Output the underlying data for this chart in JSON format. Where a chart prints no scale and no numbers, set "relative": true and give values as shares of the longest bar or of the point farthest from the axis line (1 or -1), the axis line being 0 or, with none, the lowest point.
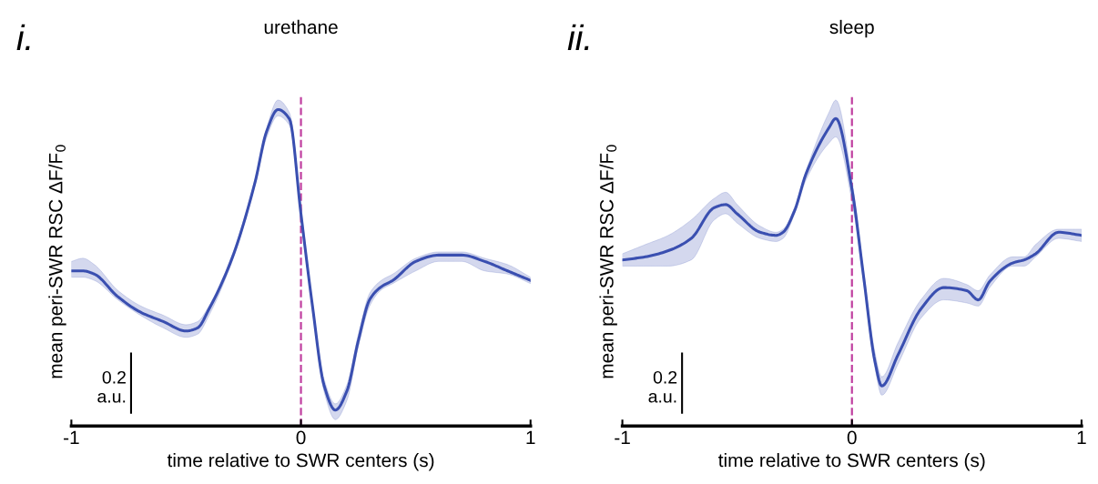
{
  "chart_data": [
    {
      "type": "line",
      "title": "urethane",
      "xlabel": "time relative to SWR centers (s)",
      "ylabel": "mean peri-SWR RSC ΔF/F$_{0}$",
      "relative": true,
      "xlim": [
        -1,
        1
      ],
      "xticks": [
        -1,
        0,
        1
      ],
      "tick_labels": "x",
      "grid": false,
      "legend": false,
      "line_style": "solid",
      "annotations": [
        "i.",
        "0.2\na.u."
      ],
      "ref_lines": [
        {
          "axis": "x",
          "value": 0,
          "color": "#c040a0",
          "line_style": "dashed"
        }
      ],
      "series": [
        {
          "color": "#3a4fb0",
          "x": [
            -1.0,
            -0.95,
            -0.9,
            -0.8,
            -0.7,
            -0.6,
            -0.5,
            -0.45,
            -0.4,
            -0.3,
            -0.2,
            -0.15,
            -0.1,
            -0.05,
            0,
            0.05,
            0.1,
            0.15,
            0.2,
            0.25,
            0.3,
            0.35,
            0.4,
            0.5,
            0.6,
            0.7,
            0.8,
            0.9,
            1.0
          ],
          "values": [
            0.49,
            0.49,
            0.48,
            0.41,
            0.36,
            0.33,
            0.3,
            0.31,
            0.37,
            0.53,
            0.77,
            0.93,
            1.0,
            0.97,
            0.67,
            0.38,
            0.13,
            0.05,
            0.11,
            0.27,
            0.4,
            0.44,
            0.46,
            0.52,
            0.54,
            0.54,
            0.52,
            0.49,
            0.46
          ],
          "lower": [
            0.47,
            0.47,
            0.46,
            0.4,
            0.35,
            0.31,
            0.28,
            0.29,
            0.35,
            0.52,
            0.76,
            0.91,
            0.98,
            0.95,
            0.66,
            0.37,
            0.11,
            0.02,
            0.08,
            0.25,
            0.38,
            0.43,
            0.45,
            0.49,
            0.52,
            0.52,
            0.49,
            0.48,
            0.45
          ],
          "upper": [
            0.52,
            0.53,
            0.51,
            0.43,
            0.38,
            0.35,
            0.32,
            0.33,
            0.38,
            0.54,
            0.78,
            0.94,
            1.03,
            0.99,
            0.69,
            0.39,
            0.15,
            0.07,
            0.13,
            0.29,
            0.42,
            0.46,
            0.48,
            0.53,
            0.55,
            0.55,
            0.53,
            0.51,
            0.47
          ]
        }
      ]
    },
    {
      "type": "line",
      "title": "sleep",
      "xlabel": "time relative to SWR centers (s)",
      "ylabel": "mean peri-SWR RSC ΔF/F$_{0}$",
      "relative": true,
      "xlim": [
        -1,
        1
      ],
      "xticks": [
        -1,
        0,
        1
      ],
      "tick_labels": "x",
      "grid": false,
      "legend": false,
      "line_style": "solid",
      "annotations": [
        "ii.",
        "0.2\na.u."
      ],
      "ref_lines": [
        {
          "axis": "x",
          "value": 0,
          "color": "#c040a0",
          "line_style": "dashed"
        }
      ],
      "series": [
        {
          "color": "#3a4fb0",
          "x": [
            -1.0,
            -0.9,
            -0.8,
            -0.7,
            -0.6,
            -0.55,
            -0.5,
            -0.4,
            -0.33,
            -0.3,
            -0.25,
            -0.2,
            -0.1,
            -0.07,
            0,
            0.05,
            0.1,
            0.13,
            0.2,
            0.3,
            0.4,
            0.5,
            0.55,
            0.6,
            0.7,
            0.75,
            0.8,
            0.9,
            1.0
          ],
          "values": [
            0.54,
            0.55,
            0.57,
            0.61,
            0.71,
            0.72,
            0.69,
            0.63,
            0.62,
            0.63,
            0.7,
            0.82,
            0.97,
            1.0,
            0.77,
            0.49,
            0.21,
            0.13,
            0.23,
            0.38,
            0.45,
            0.44,
            0.41,
            0.47,
            0.53,
            0.54,
            0.56,
            0.63,
            0.62
          ],
          "lower": [
            0.52,
            0.52,
            0.52,
            0.54,
            0.67,
            0.69,
            0.66,
            0.61,
            0.6,
            0.61,
            0.69,
            0.8,
            0.92,
            0.94,
            0.73,
            0.47,
            0.19,
            0.1,
            0.2,
            0.35,
            0.41,
            0.4,
            0.39,
            0.45,
            0.52,
            0.52,
            0.55,
            0.61,
            0.6
          ],
          "upper": [
            0.56,
            0.59,
            0.62,
            0.67,
            0.74,
            0.76,
            0.72,
            0.65,
            0.63,
            0.64,
            0.71,
            0.83,
            1.02,
            1.06,
            0.8,
            0.51,
            0.24,
            0.16,
            0.27,
            0.41,
            0.48,
            0.46,
            0.44,
            0.49,
            0.55,
            0.55,
            0.59,
            0.64,
            0.64
          ]
        }
      ]
    }
  ]
}
